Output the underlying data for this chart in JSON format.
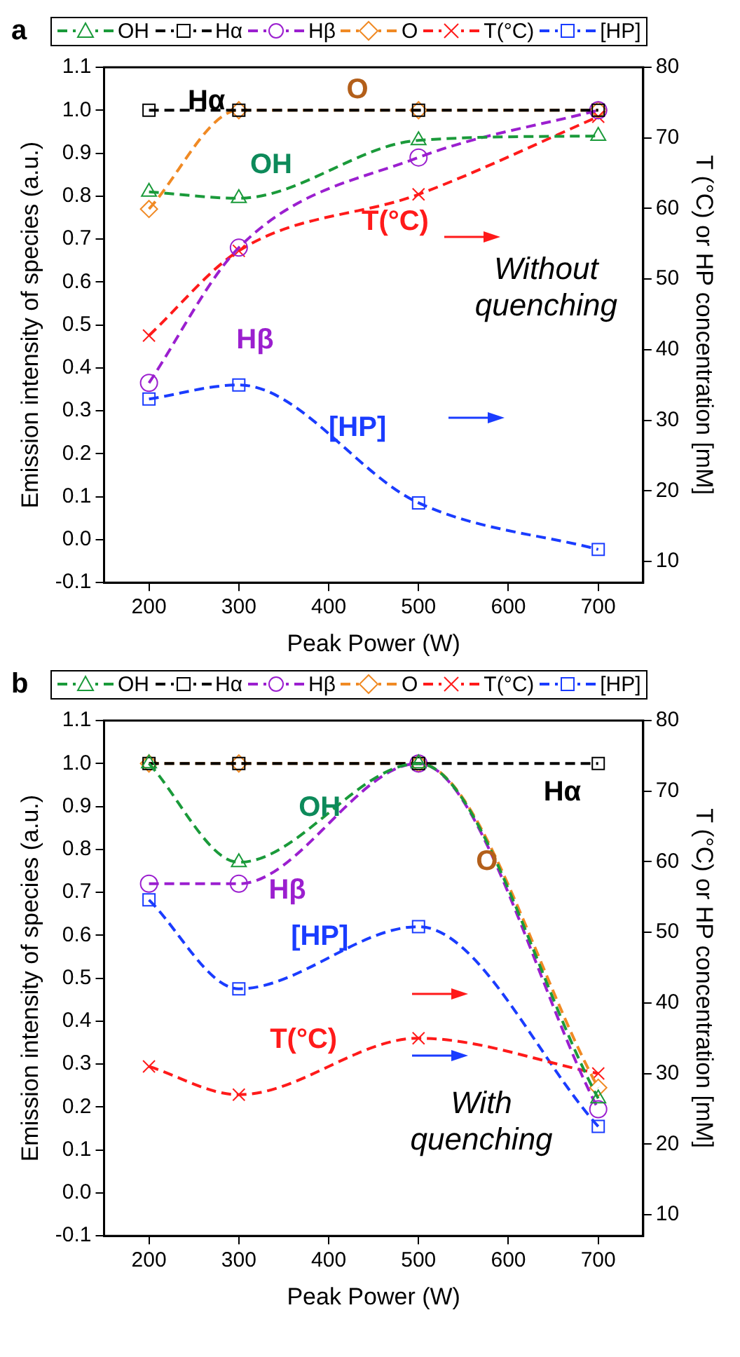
{
  "chart_data": [
    {
      "type": "line",
      "title": "a",
      "xlabel": "Peak Power (W)",
      "ylabel": "Emission intensity of species (a.u.)",
      "y2label": "T (°C) or HP concentration [mM]",
      "x": [
        200,
        300,
        500,
        700
      ],
      "series": [
        {
          "name": "OH",
          "color": "#1a9a3a",
          "marker": "triangle",
          "values": [
            0.81,
            0.795,
            0.93,
            0.94
          ]
        },
        {
          "name": "Hα",
          "color": "#000000",
          "marker": "square",
          "values": [
            1.0,
            1.0,
            1.0,
            1.0
          ]
        },
        {
          "name": "Hβ",
          "color": "#9b1fcf",
          "marker": "circle",
          "values": [
            0.365,
            0.68,
            0.89,
            1.0
          ]
        },
        {
          "name": "O",
          "color": "#f08a24",
          "marker": "diamond",
          "values": [
            0.77,
            1.0,
            1.0,
            1.0
          ]
        },
        {
          "name": "T(°C)",
          "color": "#ff1a1a",
          "marker": "cross",
          "axis": "y2",
          "values": [
            42,
            54,
            62,
            73
          ]
        },
        {
          "name": "[HP]",
          "color": "#1a3cff",
          "marker": "square",
          "axis": "y2",
          "values": [
            33,
            35,
            18.3,
            11.7
          ]
        }
      ],
      "xlim": [
        150,
        750
      ],
      "xticks": [
        200,
        300,
        400,
        500,
        600,
        700
      ],
      "ylim": [
        -0.1,
        1.1
      ],
      "yticks": [
        {
          "value": -0.1,
          "label": "-0.1"
        },
        {
          "value": 0,
          "label": "0.0"
        },
        0.1,
        0.2,
        0.3,
        0.4,
        0.5,
        0.6,
        0.7,
        0.8,
        0.9,
        {
          "value": 1,
          "label": "1.0"
        },
        1.1
      ],
      "y2lim": [
        7,
        80
      ],
      "y2ticks": [
        10,
        20,
        30,
        40,
        50,
        60,
        70,
        80
      ],
      "annotations": [
        "Hα",
        "O",
        "OH",
        "T(°C)",
        "Hβ",
        "[HP]",
        "Without quenching"
      ],
      "grid": false,
      "legend": "top",
      "line_style": "dashed"
    },
    {
      "type": "line",
      "title": "b",
      "xlabel": "Peak Power (W)",
      "ylabel": "Emission intensity of species (a.u.)",
      "y2label": "T (°C) or HP concentration [mM]",
      "x": [
        200,
        300,
        500,
        700
      ],
      "series": [
        {
          "name": "OH",
          "color": "#1a9a3a",
          "marker": "triangle",
          "values": [
            1.0,
            0.77,
            1.0,
            0.22
          ]
        },
        {
          "name": "Hα",
          "color": "#000000",
          "marker": "square",
          "values": [
            1.0,
            1.0,
            1.0,
            1.0
          ]
        },
        {
          "name": "Hβ",
          "color": "#9b1fcf",
          "marker": "circle",
          "values": [
            0.72,
            0.72,
            1.0,
            0.195
          ]
        },
        {
          "name": "O",
          "color": "#f08a24",
          "marker": "diamond",
          "values": [
            1.0,
            1.0,
            1.0,
            0.245
          ]
        },
        {
          "name": "T(°C)",
          "color": "#ff1a1a",
          "marker": "cross",
          "axis": "y2",
          "values": [
            31,
            27,
            35,
            30
          ]
        },
        {
          "name": "[HP]",
          "color": "#1a3cff",
          "marker": "square",
          "axis": "y2",
          "values": [
            54.6,
            42,
            50.8,
            22.5
          ]
        }
      ],
      "xlim": [
        150,
        750
      ],
      "xticks": [
        200,
        300,
        400,
        500,
        600,
        700
      ],
      "ylim": [
        -0.1,
        1.1
      ],
      "yticks": [
        {
          "value": -0.1,
          "label": "-0.1"
        },
        {
          "value": 0,
          "label": "0.0"
        },
        0.1,
        0.2,
        0.3,
        0.4,
        0.5,
        0.6,
        0.7,
        0.8,
        0.9,
        {
          "value": 1,
          "label": "1.0"
        },
        1.1
      ],
      "y2lim": [
        7,
        80
      ],
      "y2ticks": [
        10,
        20,
        30,
        40,
        50,
        60,
        70,
        80
      ],
      "annotations": [
        "OH",
        "Hα",
        "O",
        "Hβ",
        "[HP]",
        "T(°C)",
        "With quenching"
      ],
      "grid": false,
      "legend": "top",
      "line_style": "dashed"
    }
  ]
}
